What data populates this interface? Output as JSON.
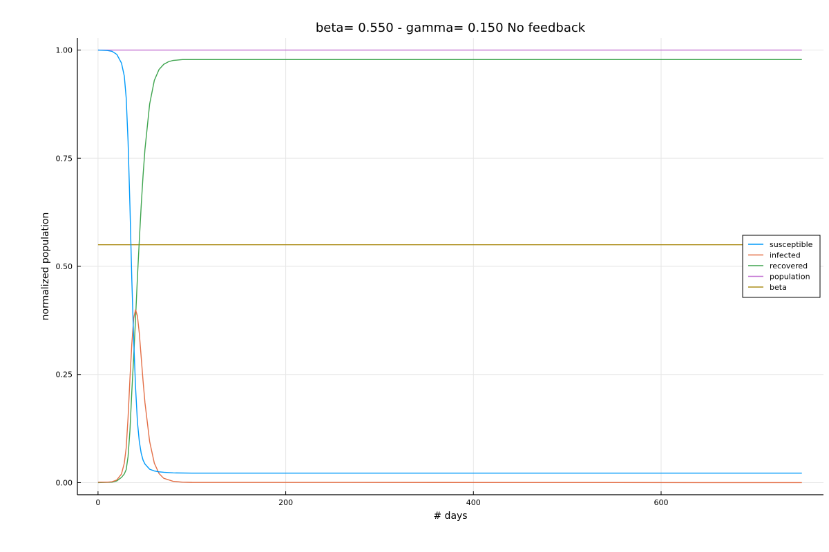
{
  "chart_data": {
    "type": "line",
    "title": "beta= 0.550 - gamma= 0.150 No feedback",
    "xlabel": "# days",
    "ylabel": "normalized population",
    "xlim": [
      -22,
      773
    ],
    "ylim": [
      -0.028,
      1.028
    ],
    "xticks": [
      0,
      200,
      400,
      600
    ],
    "xtick_labels": [
      "0",
      "200",
      "400",
      "600"
    ],
    "yticks": [
      0,
      0.25,
      0.5,
      0.75,
      1.0
    ],
    "ytick_labels": [
      "0.00",
      "0.25",
      "0.50",
      "0.75",
      "1.00"
    ],
    "grid": true,
    "legend_position": "right",
    "series": [
      {
        "name": "susceptible",
        "color": "#009AFA",
        "x": [
          0,
          10,
          15,
          20,
          25,
          28,
          30,
          32,
          34,
          36,
          38,
          40,
          42,
          44,
          46,
          48,
          50,
          55,
          60,
          65,
          70,
          80,
          100,
          150,
          750
        ],
        "y": [
          1.0,
          0.999,
          0.997,
          0.99,
          0.97,
          0.94,
          0.89,
          0.79,
          0.64,
          0.47,
          0.33,
          0.22,
          0.14,
          0.095,
          0.068,
          0.052,
          0.043,
          0.031,
          0.027,
          0.025,
          0.024,
          0.0225,
          0.022,
          0.022,
          0.022
        ]
      },
      {
        "name": "infected",
        "color": "#E36F47",
        "x": [
          0,
          10,
          15,
          20,
          25,
          28,
          30,
          32,
          34,
          36,
          38,
          40,
          42,
          44,
          46,
          48,
          50,
          55,
          60,
          65,
          70,
          80,
          90,
          100,
          750
        ],
        "y": [
          0.001,
          0.001,
          0.002,
          0.006,
          0.02,
          0.045,
          0.08,
          0.15,
          0.24,
          0.32,
          0.38,
          0.4,
          0.385,
          0.345,
          0.29,
          0.235,
          0.185,
          0.095,
          0.045,
          0.021,
          0.01,
          0.003,
          0.001,
          0.0005,
          0.0
        ]
      },
      {
        "name": "recovered",
        "color": "#3EA44E",
        "x": [
          0,
          15,
          20,
          25,
          28,
          30,
          32,
          34,
          36,
          38,
          40,
          42,
          44,
          46,
          48,
          50,
          55,
          60,
          65,
          70,
          75,
          80,
          90,
          100,
          750
        ],
        "y": [
          0.0,
          0.001,
          0.004,
          0.012,
          0.02,
          0.03,
          0.06,
          0.12,
          0.21,
          0.29,
          0.38,
          0.475,
          0.56,
          0.64,
          0.71,
          0.77,
          0.875,
          0.93,
          0.955,
          0.967,
          0.973,
          0.976,
          0.978,
          0.978,
          0.978
        ]
      },
      {
        "name": "population",
        "color": "#C271D2",
        "x": [
          0,
          750
        ],
        "y": [
          1.0,
          1.0
        ]
      },
      {
        "name": "beta",
        "color": "#AC8D18",
        "x": [
          0,
          750
        ],
        "y": [
          0.55,
          0.55
        ]
      }
    ]
  }
}
